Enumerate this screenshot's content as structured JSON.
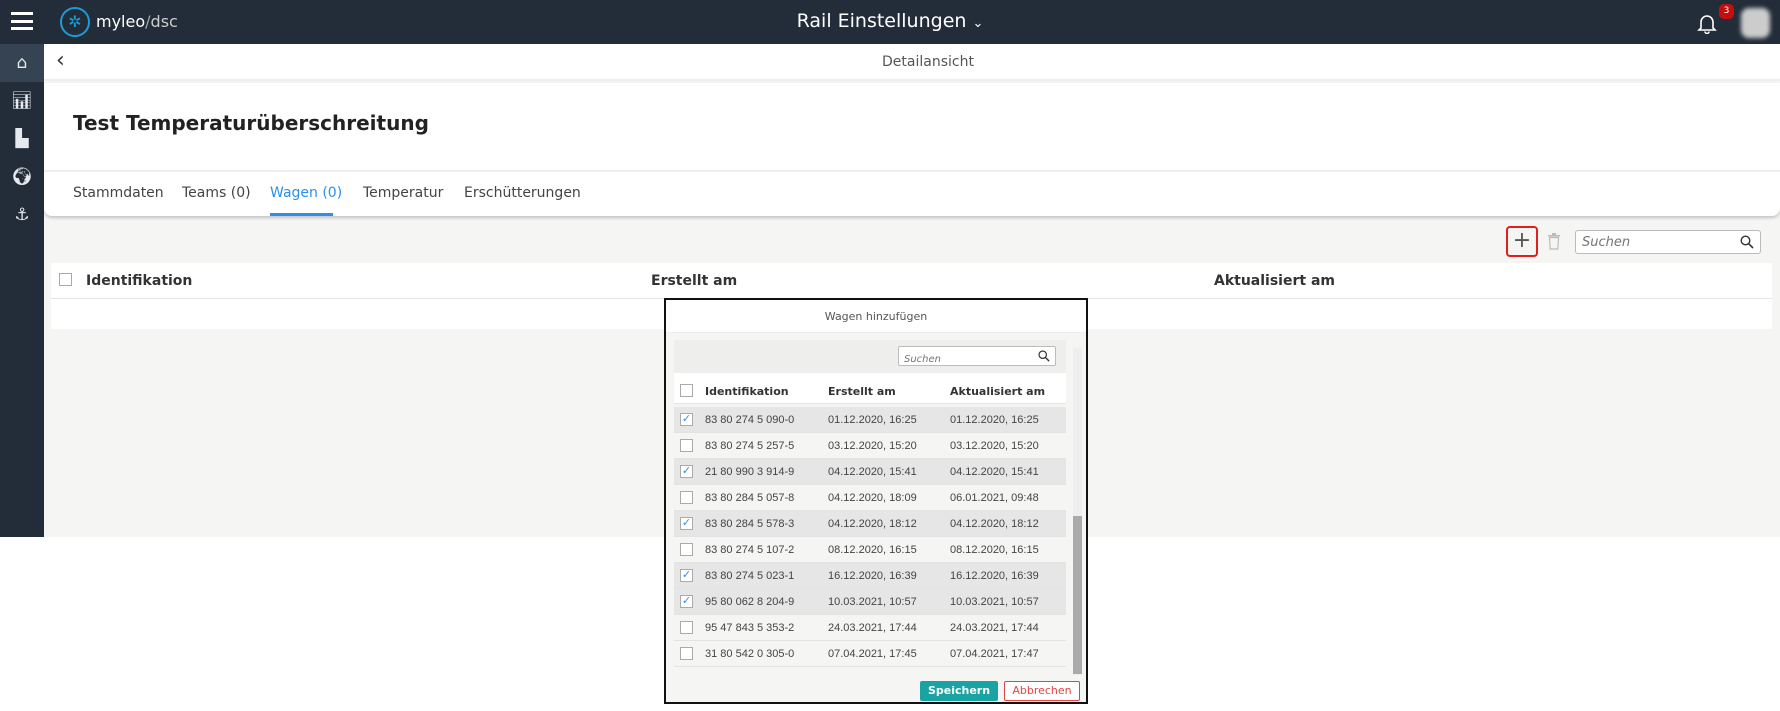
{
  "header": {
    "app_name": "myleo",
    "app_suffix": "dsc",
    "title": "Rail Einstellungen",
    "notification_count": "3"
  },
  "sidebar": {
    "items": [
      {
        "icon": "home-icon"
      },
      {
        "icon": "chart-icon"
      },
      {
        "icon": "dashboard-icon"
      },
      {
        "icon": "globe-icon"
      },
      {
        "icon": "anchor-icon"
      }
    ]
  },
  "subheader": {
    "title": "Detailansicht"
  },
  "page": {
    "title": "Test Temperaturüberschreitung"
  },
  "tabs": [
    {
      "label": "Stammdaten"
    },
    {
      "label": "Teams (0)"
    },
    {
      "label": "Wagen (0)",
      "active": true
    },
    {
      "label": "Temperatur"
    },
    {
      "label": "Erschütterungen"
    }
  ],
  "toolbar": {
    "search_placeholder": "Suchen"
  },
  "table": {
    "columns": [
      "Identifikation",
      "Erstellt am",
      "Aktualisiert am"
    ]
  },
  "modal": {
    "title": "Wagen hinzufügen",
    "search_placeholder": "Suchen",
    "columns": [
      "Identifikation",
      "Erstellt am",
      "Aktualisiert am"
    ],
    "rows": [
      {
        "id": "83 80 274 5 090-0",
        "created": "01.12.2020, 16:25",
        "updated": "01.12.2020, 16:25",
        "checked": true
      },
      {
        "id": "83 80 274 5 257-5",
        "created": "03.12.2020, 15:20",
        "updated": "03.12.2020, 15:20",
        "checked": false
      },
      {
        "id": "21 80 990 3 914-9",
        "created": "04.12.2020, 15:41",
        "updated": "04.12.2020, 15:41",
        "checked": true
      },
      {
        "id": "83 80 284 5 057-8",
        "created": "04.12.2020, 18:09",
        "updated": "06.01.2021, 09:48",
        "checked": false
      },
      {
        "id": "83 80 284 5 578-3",
        "created": "04.12.2020, 18:12",
        "updated": "04.12.2020, 18:12",
        "checked": true
      },
      {
        "id": "83 80 274 5 107-2",
        "created": "08.12.2020, 16:15",
        "updated": "08.12.2020, 16:15",
        "checked": false
      },
      {
        "id": "83 80 274 5 023-1",
        "created": "16.12.2020, 16:39",
        "updated": "16.12.2020, 16:39",
        "checked": true
      },
      {
        "id": "95 80 062 8 204-9",
        "created": "10.03.2021, 10:57",
        "updated": "10.03.2021, 10:57",
        "checked": true
      },
      {
        "id": "95 47 843 5 353-2",
        "created": "24.03.2021, 17:44",
        "updated": "24.03.2021, 17:44",
        "checked": false
      },
      {
        "id": "31 80 542 0 305-0",
        "created": "07.04.2021, 17:45",
        "updated": "07.04.2021, 17:47",
        "checked": false
      }
    ],
    "save_label": "Speichern",
    "cancel_label": "Abbrechen"
  },
  "colors": {
    "header_bg": "#232d39",
    "accent": "#2a8ff0",
    "save": "#1aa3a3",
    "cancel": "#e04444",
    "badge": "#c40f0f"
  }
}
